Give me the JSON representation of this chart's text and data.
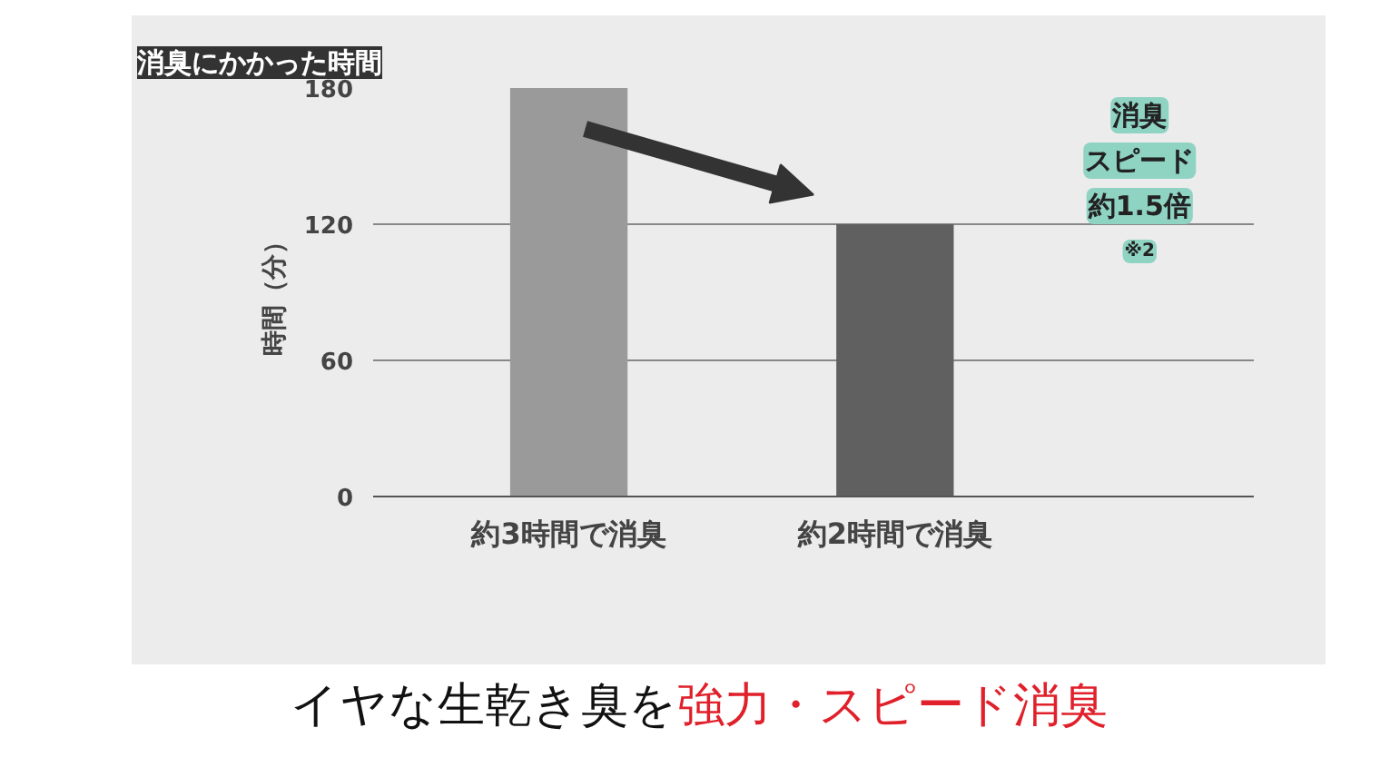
{
  "chart_data": {
    "type": "bar",
    "title": "消臭にかかった時間",
    "ylabel": "時間（分）",
    "categories": [
      "約3時間で消臭",
      "約2時間で消臭"
    ],
    "values": [
      180,
      120
    ],
    "colors": [
      "#9a9a9a",
      "#606060"
    ],
    "ylim": [
      0,
      180
    ],
    "yticks": [
      0,
      60,
      120,
      180
    ],
    "grid": "y",
    "annotations": [
      "消臭",
      "スピード",
      "約1.5倍",
      "※2",
      "イヤな生乾き臭を",
      "強力・スピード消臭"
    ]
  }
}
